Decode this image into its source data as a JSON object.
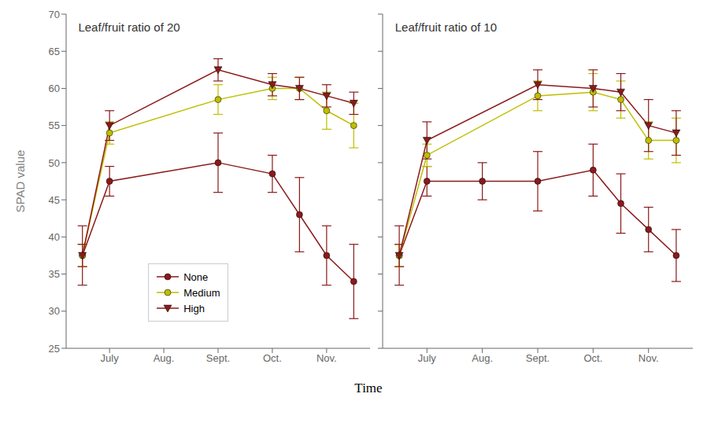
{
  "chart_data": [
    {
      "type": "line",
      "title": "Leaf/fruit ratio of 20",
      "x_label": "Time",
      "y_label": "SPAD value",
      "xlim": [
        0.2,
        5.8
      ],
      "xticks": [
        {
          "value": 1,
          "label": "July"
        },
        {
          "value": 2,
          "label": "Aug."
        },
        {
          "value": 3,
          "label": "Sept."
        },
        {
          "value": 4,
          "label": "Oct."
        },
        {
          "value": 5,
          "label": "Nov."
        }
      ],
      "ylim": [
        25,
        70
      ],
      "yticks": [
        25,
        30,
        35,
        40,
        45,
        50,
        55,
        60,
        65,
        70
      ],
      "legend": "lower center",
      "series": [
        {
          "name": "None",
          "color": "#8B1A1A",
          "marker": "circle",
          "x": [
            0.5,
            1.0,
            3.0,
            4.0,
            4.5,
            5.0,
            5.5
          ],
          "values": [
            37.5,
            47.5,
            50.0,
            48.5,
            43.0,
            37.5,
            34.0
          ],
          "errors": [
            4.0,
            2.0,
            4.0,
            2.5,
            5.0,
            4.0,
            5.0
          ]
        },
        {
          "name": "Medium",
          "color": "#BEBE00",
          "marker": "circle",
          "x": [
            0.5,
            1.0,
            3.0,
            4.0,
            4.5,
            5.0,
            5.5
          ],
          "values": [
            37.5,
            54.0,
            58.5,
            60.0,
            60.0,
            57.0,
            55.0
          ],
          "errors": [
            1.5,
            1.5,
            2.0,
            1.5,
            1.5,
            2.5,
            3.0
          ]
        },
        {
          "name": "High",
          "color": "#8B1A1A",
          "marker": "triangle-down",
          "x": [
            0.5,
            1.0,
            3.0,
            4.0,
            4.5,
            5.0,
            5.5
          ],
          "values": [
            37.5,
            55.0,
            62.5,
            60.5,
            60.0,
            59.0,
            58.0
          ],
          "errors": [
            1.5,
            2.0,
            1.5,
            1.5,
            1.5,
            1.5,
            1.5
          ]
        }
      ]
    },
    {
      "type": "line",
      "title": "Leaf/fruit ratio of 10",
      "tick_labels": "x",
      "xlim": [
        0.2,
        5.8
      ],
      "xticks": [
        {
          "value": 1,
          "label": "July"
        },
        {
          "value": 2,
          "label": "Aug."
        },
        {
          "value": 3,
          "label": "Sept."
        },
        {
          "value": 4,
          "label": "Oct."
        },
        {
          "value": 5,
          "label": "Nov."
        }
      ],
      "ylim": [
        25,
        70
      ],
      "yticks": [
        25,
        30,
        35,
        40,
        45,
        50,
        55,
        60,
        65,
        70
      ],
      "series": [
        {
          "name": "None",
          "color": "#8B1A1A",
          "marker": "circle",
          "x": [
            0.5,
            1.0,
            2.0,
            3.0,
            4.0,
            4.5,
            5.0,
            5.5
          ],
          "values": [
            37.5,
            47.5,
            47.5,
            47.5,
            49.0,
            44.5,
            41.0,
            37.5
          ],
          "errors": [
            4.0,
            2.0,
            2.5,
            4.0,
            3.5,
            4.0,
            3.0,
            3.5
          ]
        },
        {
          "name": "Medium",
          "color": "#BEBE00",
          "marker": "circle",
          "x": [
            0.5,
            1.0,
            3.0,
            4.0,
            4.5,
            5.0,
            5.5
          ],
          "values": [
            37.5,
            51.0,
            59.0,
            59.5,
            58.5,
            53.0,
            53.0
          ],
          "errors": [
            1.5,
            1.5,
            2.0,
            2.5,
            2.5,
            2.5,
            3.0
          ]
        },
        {
          "name": "High",
          "color": "#8B1A1A",
          "marker": "triangle-down",
          "x": [
            0.5,
            1.0,
            3.0,
            4.0,
            4.5,
            5.0,
            5.5
          ],
          "values": [
            37.5,
            53.0,
            60.5,
            60.0,
            59.5,
            55.0,
            54.0
          ],
          "errors": [
            1.5,
            2.5,
            2.0,
            2.5,
            2.5,
            3.5,
            3.0
          ]
        }
      ]
    }
  ]
}
